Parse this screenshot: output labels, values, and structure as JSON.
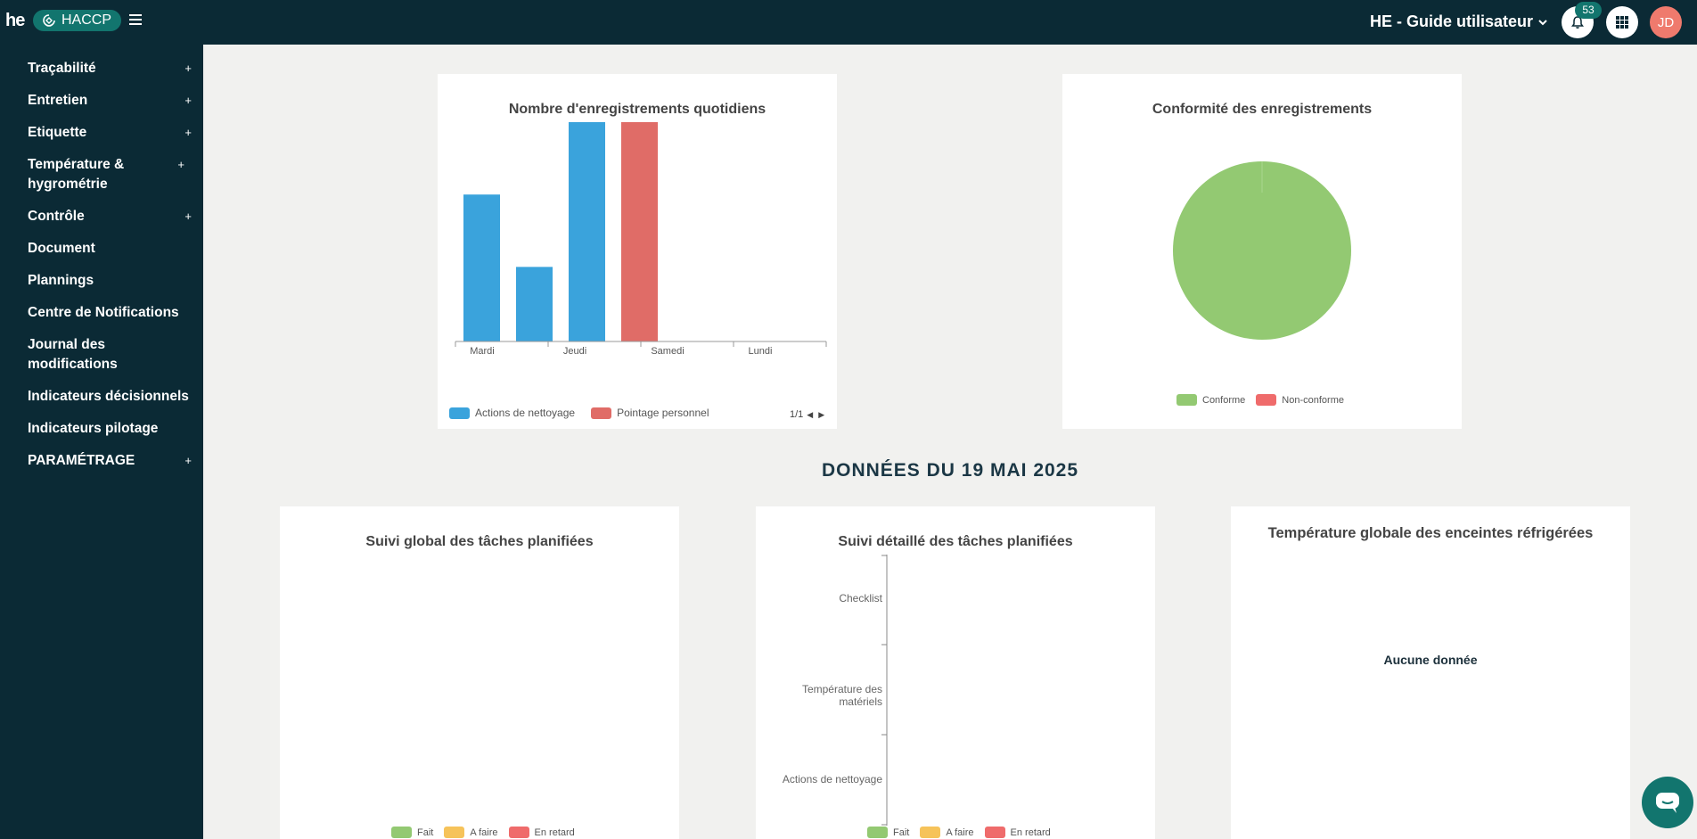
{
  "header": {
    "logo_text": "he",
    "product": "HACCP",
    "account": "HE - Guide utilisateur",
    "notifications_count": "53",
    "avatar_initials": "JD"
  },
  "sidebar": {
    "items": [
      {
        "label": "Traçabilité",
        "expandable": "+"
      },
      {
        "label": "Entretien",
        "expandable": "+"
      },
      {
        "label": "Etiquette",
        "expandable": "+"
      },
      {
        "label": "Température & hygrométrie",
        "expandable": "+"
      },
      {
        "label": "Contrôle",
        "expandable": "+"
      },
      {
        "label": "Document"
      },
      {
        "label": "Plannings"
      },
      {
        "label": "Centre de Notifications"
      },
      {
        "label": "Journal des modifications"
      },
      {
        "label": "Indicateurs décisionnels"
      },
      {
        "label": "Indicateurs pilotage"
      },
      {
        "label": "PARAMÉTRAGE",
        "expandable": "+"
      }
    ]
  },
  "cards": {
    "daily": {
      "title": "Nombre d'enregistrements quotidiens",
      "pager": "1/1"
    },
    "conformity": {
      "title": "Conformité des enregistrements"
    },
    "section_heading": "DONNÉES DU 19 MAI 2025",
    "global_tasks": {
      "title": "Suivi global des tâches planifiées"
    },
    "detailed_tasks": {
      "title": "Suivi détaillé des tâches planifiées"
    },
    "temperature": {
      "title": "Température globale des enceintes réfrigérées",
      "empty": "Aucune donnée"
    }
  },
  "chart_data": [
    {
      "type": "bar",
      "title": "Nombre d'enregistrements quotidiens",
      "tick_labels": [
        "Mardi",
        "Jeudi",
        "Samedi",
        "Lundi"
      ],
      "bars": [
        {
          "series": "Actions de nettoyage",
          "slot": 0,
          "value": 0.67
        },
        {
          "series": "Actions de nettoyage",
          "slot": 1,
          "value": 0.34
        },
        {
          "series": "Actions de nettoyage",
          "slot": 2,
          "value": 1.0
        },
        {
          "series": "Pointage personnel",
          "slot": 3,
          "value": 1.0
        }
      ],
      "series": [
        {
          "name": "Actions de nettoyage",
          "color": "#3aa3dc"
        },
        {
          "name": "Pointage personnel",
          "color": "#e06c67"
        }
      ],
      "ylim": [
        0,
        1
      ]
    },
    {
      "type": "pie",
      "title": "Conformité des enregistrements",
      "slices": [
        {
          "label": "Conforme",
          "value": 100,
          "color": "#93c972"
        },
        {
          "label": "Non-conforme",
          "value": 0,
          "color": "#ef6b6b"
        }
      ]
    },
    {
      "type": "bar",
      "title": "Suivi global des tâches planifiées",
      "legend": [
        {
          "name": "Fait",
          "color": "#93c972"
        },
        {
          "name": "A faire",
          "color": "#f6c35a"
        },
        {
          "name": "En retard",
          "color": "#ef6b6b"
        }
      ]
    },
    {
      "type": "bar",
      "title": "Suivi détaillé des tâches planifiées",
      "categories": [
        "Checklist",
        "Température des matériels",
        "Actions de nettoyage"
      ],
      "legend": [
        {
          "name": "Fait",
          "color": "#93c972"
        },
        {
          "name": "A faire",
          "color": "#f6c35a"
        },
        {
          "name": "En retard",
          "color": "#ef6b6b"
        }
      ]
    }
  ]
}
